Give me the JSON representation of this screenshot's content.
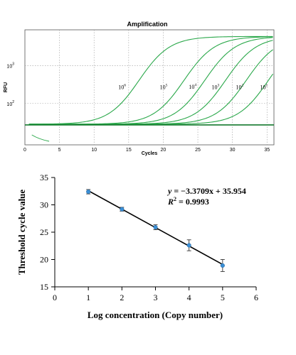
{
  "chart_data": [
    {
      "type": "line",
      "title": "Amplification",
      "xlabel": "Cycles",
      "ylabel": "RFU",
      "x_ticks": [
        "0",
        "5",
        "10",
        "15",
        "20",
        "25",
        "30",
        "35"
      ],
      "y_ticks": [
        {
          "base": "10",
          "exp": "3",
          "value": 1000
        },
        {
          "base": "10",
          "exp": "2",
          "value": 100
        }
      ],
      "xlim": [
        0,
        36
      ],
      "ylim": [
        8,
        9000
      ],
      "y_scale": "log",
      "grid": true,
      "threshold": 27,
      "series": [
        {
          "label_base": "10",
          "label_exp": "6",
          "midpoint": 16.5,
          "label_x": 13.5,
          "label_y": 240
        },
        {
          "label_base": "10",
          "label_exp": "5",
          "midpoint": 23.0,
          "label_x": 19.5,
          "label_y": 240
        },
        {
          "label_base": "10",
          "label_exp": "4",
          "midpoint": 26.0,
          "label_x": 23.7,
          "label_y": 245
        },
        {
          "label_base": "10",
          "label_exp": "3",
          "midpoint": 29.0,
          "label_x": 27.0,
          "label_y": 240
        },
        {
          "label_base": "10",
          "label_exp": "2",
          "midpoint": 32.0,
          "label_x": 30.5,
          "label_y": 240
        },
        {
          "label_base": "10",
          "label_exp": "1",
          "midpoint": 35.2,
          "label_x": 34.0,
          "label_y": 240
        }
      ],
      "colors": {
        "curve": "#2aa84a",
        "threshold": "#157a2e"
      }
    },
    {
      "type": "scatter",
      "xlabel": "Log concentration (Copy number)",
      "ylabel": "Threshold cycle value",
      "x_ticks": [
        "0",
        "1",
        "2",
        "3",
        "4",
        "5",
        "6"
      ],
      "y_ticks": [
        "15",
        "20",
        "25",
        "30",
        "35"
      ],
      "xlim": [
        0,
        6
      ],
      "ylim": [
        15,
        35
      ],
      "points": [
        {
          "x": 1,
          "y": 32.4,
          "err": 0.4
        },
        {
          "x": 2,
          "y": 29.2,
          "err": 0.35
        },
        {
          "x": 3,
          "y": 25.9,
          "err": 0.45
        },
        {
          "x": 4,
          "y": 22.6,
          "err": 1.0
        },
        {
          "x": 5,
          "y": 18.9,
          "err": 1.1
        }
      ],
      "fit": {
        "slope": -3.3709,
        "intercept": 35.954,
        "x_range": [
          1,
          5
        ]
      },
      "equation_lhs": "y",
      "equation_rhs": " = −3.3709x + 35.954",
      "r2_label": "R",
      "r2_exp": "2",
      "r2_value": " = 0.9993",
      "colors": {
        "point": "#3b8fd6",
        "line": "#000000"
      }
    }
  ]
}
